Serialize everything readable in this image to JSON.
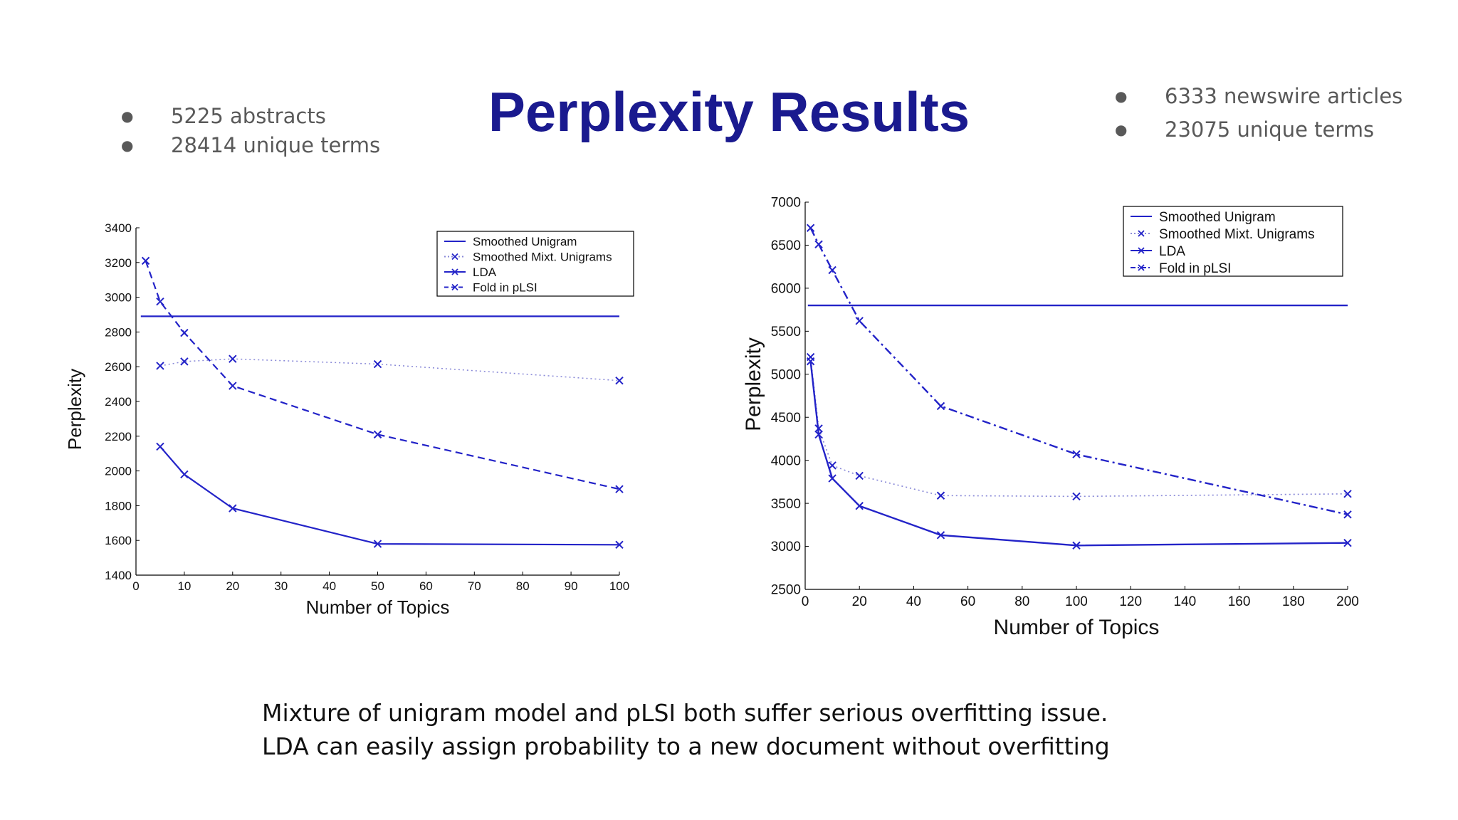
{
  "slide": {
    "title": "Perplexity Results",
    "left_bullets": [
      "5225 abstracts",
      "28414 unique terms"
    ],
    "right_bullets": [
      "6333 newswire articles",
      "23075 unique terms"
    ],
    "caption_lines": [
      "Mixture of unigram model and pLSI both suffer serious overfitting issue.",
      "LDA can easily assign probability to a new document without overfitting"
    ]
  },
  "colors": {
    "title": "#1a1a8f",
    "series": "#2323c8",
    "text": "#595959"
  },
  "chart_data": [
    {
      "type": "line",
      "xlabel": "Number of Topics",
      "ylabel": "Perplexity",
      "xlim": [
        0,
        100
      ],
      "ylim": [
        1400,
        3400
      ],
      "xticks": [
        0,
        10,
        20,
        30,
        40,
        50,
        60,
        70,
        80,
        90,
        100
      ],
      "yticks": [
        1400,
        1600,
        1800,
        2000,
        2200,
        2400,
        2600,
        2800,
        3000,
        3200,
        3400
      ],
      "grid": false,
      "legend": "top-right",
      "series": [
        {
          "name": "Smoothed Unigram",
          "style": "solid",
          "marker": "none",
          "x": [
            1,
            100
          ],
          "y": [
            2890,
            2890
          ]
        },
        {
          "name": "Smoothed Mixt. Unigrams",
          "style": "dotted",
          "marker": "x",
          "x": [
            5,
            10,
            20,
            50,
            100
          ],
          "y": [
            2605,
            2630,
            2645,
            2615,
            2520
          ]
        },
        {
          "name": "LDA",
          "style": "solid",
          "marker": "x",
          "x": [
            5,
            10,
            20,
            50,
            100
          ],
          "y": [
            2140,
            1980,
            1785,
            1580,
            1575
          ]
        },
        {
          "name": "Fold in pLSI",
          "style": "dashed",
          "marker": "x",
          "x": [
            2,
            5,
            10,
            20,
            50,
            100
          ],
          "y": [
            3210,
            2975,
            2795,
            2490,
            2210,
            1895
          ]
        }
      ]
    },
    {
      "type": "line",
      "xlabel": "Number of Topics",
      "ylabel": "Perplexity",
      "xlim": [
        0,
        200
      ],
      "ylim": [
        2500,
        7000
      ],
      "xticks": [
        0,
        20,
        40,
        60,
        80,
        100,
        120,
        140,
        160,
        180,
        200
      ],
      "yticks": [
        2500,
        3000,
        3500,
        4000,
        4500,
        5000,
        5500,
        6000,
        6500,
        7000
      ],
      "grid": false,
      "legend": "top-right",
      "series": [
        {
          "name": "Smoothed Unigram",
          "style": "solid",
          "marker": "none",
          "x": [
            1,
            200
          ],
          "y": [
            5800,
            5800
          ]
        },
        {
          "name": "Smoothed Mixt. Unigrams",
          "style": "dotted",
          "marker": "x",
          "x": [
            2,
            5,
            10,
            20,
            50,
            100,
            200
          ],
          "y": [
            5200,
            4370,
            3940,
            3820,
            3590,
            3580,
            3610
          ]
        },
        {
          "name": "LDA",
          "style": "solid",
          "marker": "x",
          "x": [
            2,
            5,
            10,
            20,
            50,
            100,
            200
          ],
          "y": [
            5150,
            4300,
            3790,
            3470,
            3130,
            3010,
            3040
          ]
        },
        {
          "name": "Fold in pLSI",
          "style": "dashdot",
          "marker": "x",
          "x": [
            2,
            5,
            10,
            20,
            50,
            100,
            200
          ],
          "y": [
            6700,
            6510,
            6210,
            5620,
            4630,
            4070,
            3370
          ]
        }
      ]
    }
  ]
}
